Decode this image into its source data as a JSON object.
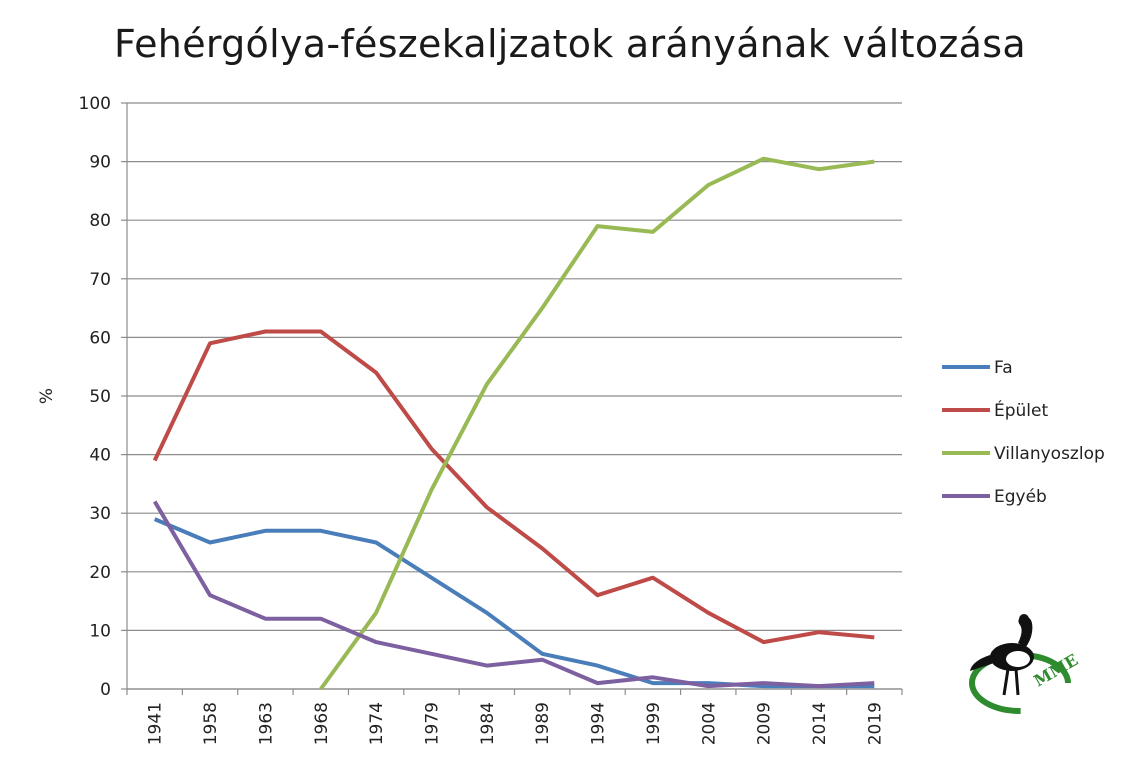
{
  "chart_data": {
    "type": "line",
    "title": "Fehérgólya-fészekaljzatok arányának változása",
    "xlabel": "",
    "ylabel": "%",
    "ylim": [
      0,
      100
    ],
    "yticks": [
      0,
      10,
      20,
      30,
      40,
      50,
      60,
      70,
      80,
      90,
      100
    ],
    "grid": true,
    "legend_position": "right",
    "categories": [
      "1941",
      "1958",
      "1963",
      "1968",
      "1974",
      "1979",
      "1984",
      "1989",
      "1994",
      "1999",
      "2004",
      "2009",
      "2014",
      "2019"
    ],
    "series": [
      {
        "name": "Fa",
        "color": "#4a7ebb",
        "values": [
          29,
          25,
          27,
          27,
          25,
          19,
          13,
          6,
          4,
          1,
          1,
          0.5,
          0.5,
          0.5
        ]
      },
      {
        "name": "Épület",
        "color": "#be4b48",
        "values": [
          39,
          59,
          61,
          61,
          54,
          41,
          31,
          24,
          16,
          19,
          13,
          8,
          9.7,
          8.8
        ]
      },
      {
        "name": "Villanyoszlop",
        "color": "#98b954",
        "values": [
          null,
          null,
          null,
          0,
          13,
          34,
          52,
          65,
          79,
          78,
          86,
          90.5,
          88.7,
          90
        ]
      },
      {
        "name": "Egyéb",
        "color": "#7d60a0",
        "values": [
          32,
          16,
          12,
          12,
          8,
          6,
          4,
          5,
          1,
          2,
          0.5,
          1,
          0.5,
          1
        ]
      }
    ]
  },
  "logo": {
    "text": "MME",
    "icon": "stork-logo-icon",
    "color": "#2e8b2e"
  }
}
